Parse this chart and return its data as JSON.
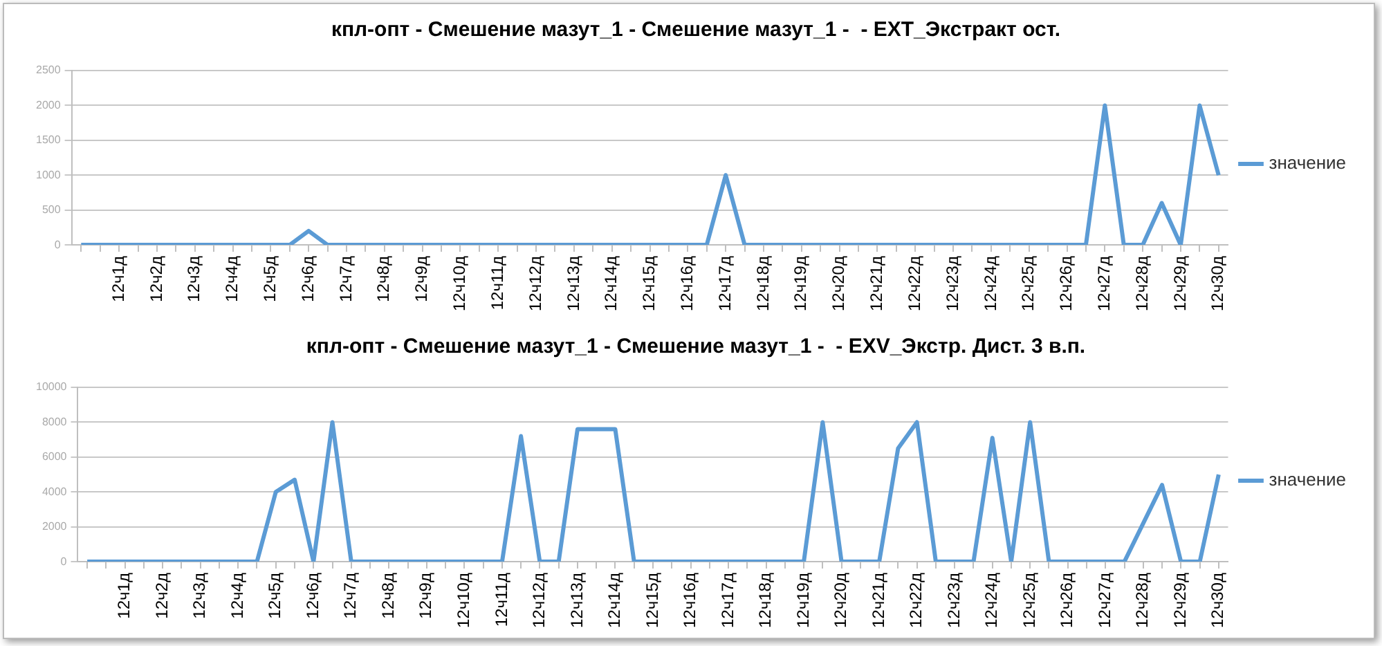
{
  "chart_data": [
    {
      "type": "line",
      "title": "кпл-опт - Смешение мазут_1 - Смешение мазут_1 -  - EXT_Экстракт ост.",
      "categories": [
        null,
        null,
        "12ч1д",
        null,
        "12ч2д",
        null,
        "12ч3д",
        null,
        "12ч4д",
        null,
        "12ч5д",
        null,
        "12ч6д",
        null,
        "12ч7д",
        null,
        "12ч8д",
        null,
        "12ч9д",
        null,
        "12ч10д",
        null,
        "12ч11д",
        null,
        "12ч12д",
        null,
        "12ч13д",
        null,
        "12ч14д",
        null,
        "12ч15д",
        null,
        "12ч16д",
        null,
        "12ч17д",
        null,
        "12ч18д",
        null,
        "12ч19д",
        null,
        "12ч20д",
        null,
        "12ч21д",
        null,
        "12ч22д",
        null,
        "12ч23д",
        null,
        "12ч24д",
        null,
        "12ч25д",
        null,
        "12ч26д",
        null,
        "12ч27д",
        null,
        "12ч28д",
        null,
        "12ч29д",
        null,
        "12ч30д"
      ],
      "series": [
        {
          "name": "значение",
          "color": "#5b9bd5",
          "values": [
            0,
            0,
            0,
            0,
            0,
            0,
            0,
            0,
            0,
            0,
            0,
            0,
            200,
            0,
            0,
            0,
            0,
            0,
            0,
            0,
            0,
            0,
            0,
            0,
            0,
            0,
            0,
            0,
            0,
            0,
            0,
            0,
            0,
            0,
            1000,
            0,
            0,
            0,
            0,
            0,
            0,
            0,
            0,
            0,
            0,
            0,
            0,
            0,
            0,
            0,
            0,
            0,
            0,
            0,
            2000,
            0,
            0,
            600,
            0,
            2000,
            1000
          ]
        }
      ],
      "ylim": [
        0,
        2500
      ],
      "yticks": [
        0,
        500,
        1000,
        1500,
        2000,
        2500
      ],
      "grid": "y",
      "legend": "right",
      "marker": "none"
    },
    {
      "type": "line",
      "title": "кпл-опт - Смешение мазут_1 - Смешение мазут_1 -  - EXV_Экстр. Дист. 3 в.п.",
      "categories": [
        null,
        null,
        "12ч1д",
        null,
        "12ч2д",
        null,
        "12ч3д",
        null,
        "12ч4д",
        null,
        "12ч5д",
        null,
        "12ч6д",
        null,
        "12ч7д",
        null,
        "12ч8д",
        null,
        "12ч9д",
        null,
        "12ч10д",
        null,
        "12ч11д",
        null,
        "12ч12д",
        null,
        "12ч13д",
        null,
        "12ч14д",
        null,
        "12ч15д",
        null,
        "12ч16д",
        null,
        "12ч17д",
        null,
        "12ч18д",
        null,
        "12ч19д",
        null,
        "12ч20д",
        null,
        "12ч21д",
        null,
        "12ч22д",
        null,
        "12ч23д",
        null,
        "12ч24д",
        null,
        "12ч25д",
        null,
        "12ч26д",
        null,
        "12ч27д",
        null,
        "12ч28д",
        null,
        "12ч29д",
        null,
        "12ч30д"
      ],
      "series": [
        {
          "name": "значение",
          "color": "#5b9bd5",
          "values": [
            0,
            0,
            0,
            0,
            0,
            0,
            0,
            0,
            0,
            0,
            4000,
            4700,
            0,
            8000,
            0,
            0,
            0,
            0,
            0,
            0,
            0,
            0,
            0,
            7200,
            0,
            0,
            7600,
            7600,
            7600,
            0,
            0,
            0,
            0,
            0,
            0,
            0,
            0,
            0,
            0,
            8000,
            0,
            0,
            0,
            6500,
            8000,
            0,
            0,
            0,
            7100,
            0,
            8000,
            0,
            0,
            0,
            0,
            0,
            2200,
            4400,
            0,
            0,
            5000
          ]
        }
      ],
      "ylim": [
        0,
        10000
      ],
      "yticks": [
        0,
        2000,
        4000,
        6000,
        8000,
        10000
      ],
      "grid": "y",
      "legend": "right",
      "marker": "none"
    }
  ]
}
